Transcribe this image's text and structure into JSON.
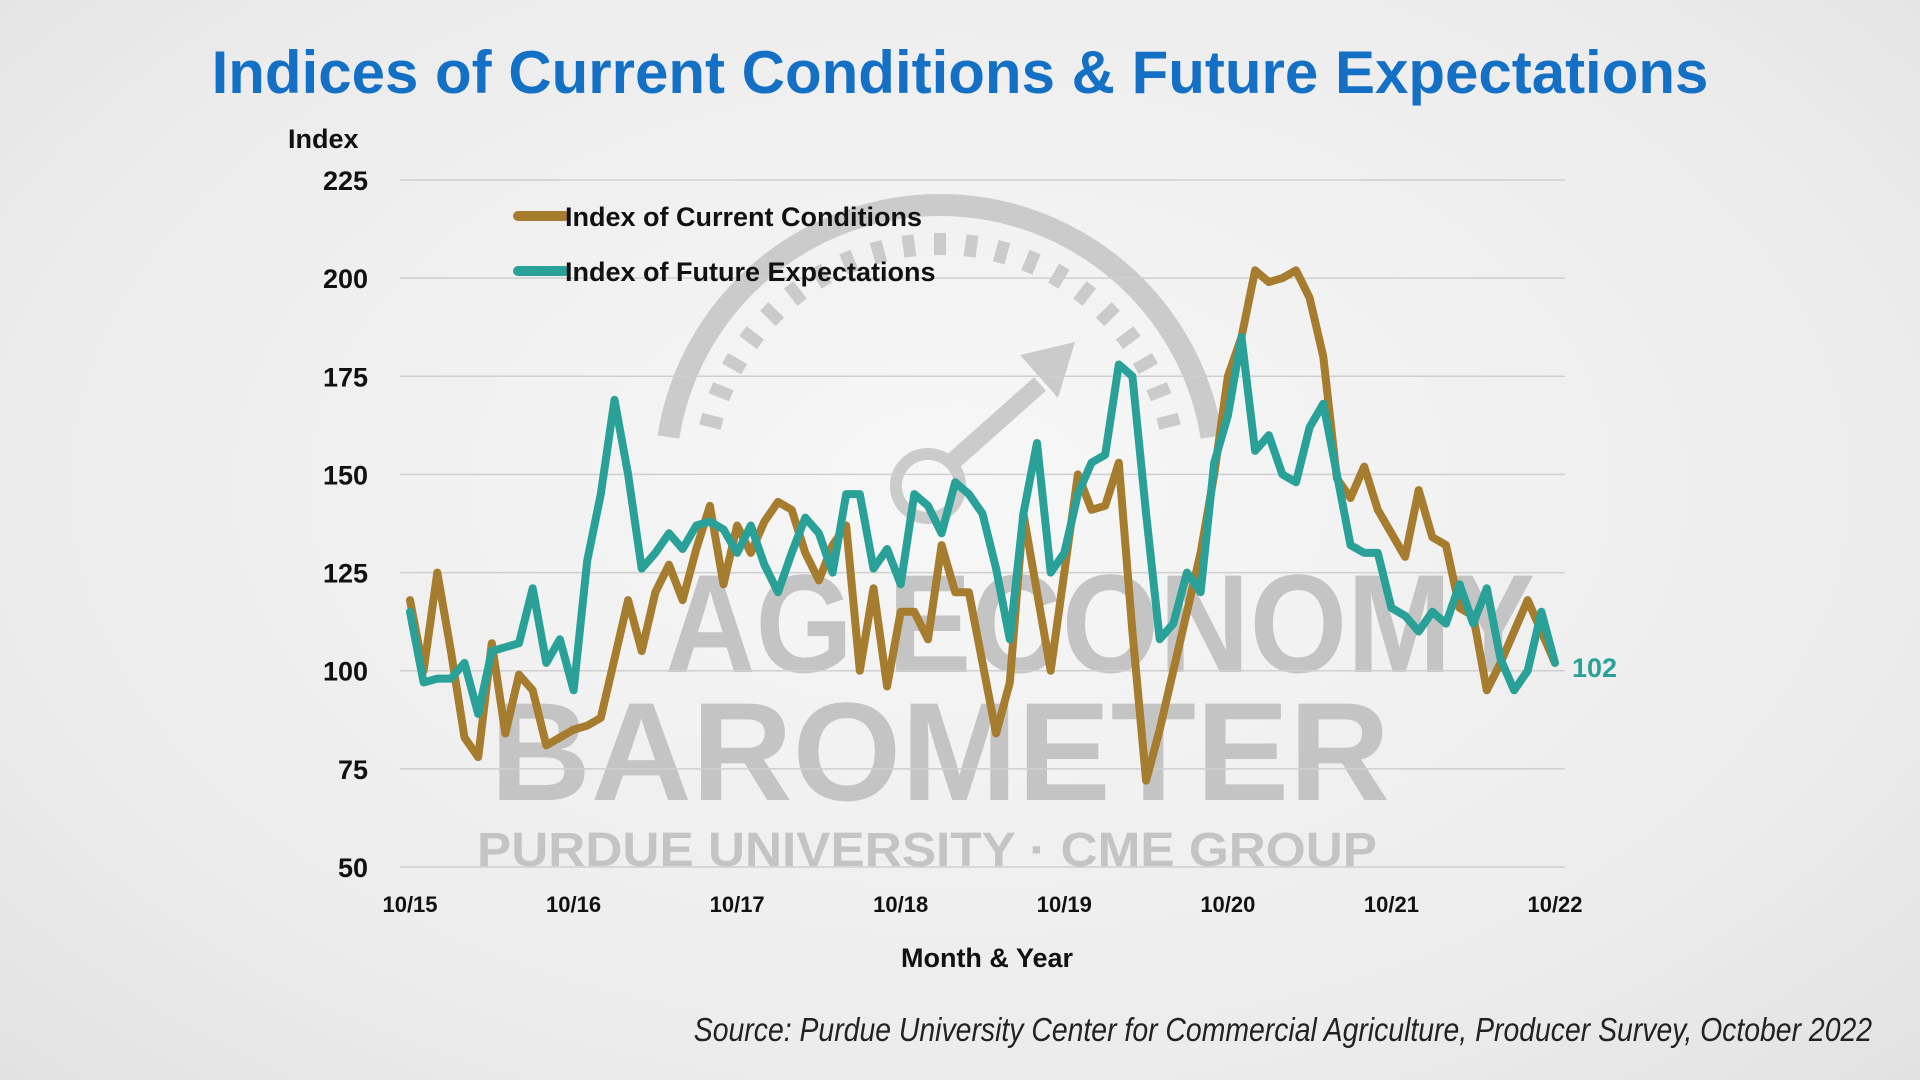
{
  "title": "Indices of Current Conditions & Future Expectations",
  "source": "Source: Purdue University Center for Commercial Agriculture, Producer Survey, October 2022",
  "watermark": {
    "line1": "AG ECONOMY",
    "line2": "BAROMETER",
    "line3": "PURDUE UNIVERSITY · CME GROUP"
  },
  "colors": {
    "current": "#a67c2e",
    "future": "#2aa198",
    "title": "#1470c4",
    "grid": "#cfcfcf"
  },
  "chart_data": {
    "type": "line",
    "ylabel": "Index",
    "xlabel": "Month & Year",
    "ylim": [
      50,
      225
    ],
    "yticks": [
      "225",
      "200",
      "175",
      "150",
      "125",
      "100",
      "75",
      "50"
    ],
    "x_tick_labels": [
      "10/15",
      "10/16",
      "10/17",
      "10/18",
      "10/19",
      "10/20",
      "10/21",
      "10/22"
    ],
    "x_start": "10/15",
    "x_end": "10/22",
    "grid": "horizontal",
    "legend_position": "top-left",
    "end_label": "102",
    "series": [
      {
        "name": "Index of Current Conditions",
        "color": "#a67c2e",
        "values": [
          118,
          100,
          125,
          105,
          83,
          78,
          107,
          84,
          99,
          95,
          81,
          83,
          85,
          86,
          88,
          103,
          118,
          105,
          120,
          127,
          118,
          131,
          142,
          122,
          137,
          130,
          138,
          143,
          141,
          130,
          123,
          132,
          137,
          100,
          121,
          96,
          115,
          115,
          108,
          132,
          120,
          120,
          102,
          84,
          97,
          140,
          120,
          100,
          125,
          150,
          141,
          142,
          153,
          110,
          72,
          85,
          100,
          115,
          130,
          150,
          175,
          185,
          202,
          199,
          200,
          202,
          195,
          180,
          149,
          144,
          152,
          141,
          135,
          129,
          146,
          134,
          132,
          116,
          114,
          95,
          102,
          110,
          118,
          110,
          102
        ],
        "end_value": 102
      },
      {
        "name": "Index of Future Expectations",
        "color": "#2aa198",
        "values": [
          115,
          97,
          98,
          98,
          102,
          89,
          105,
          106,
          107,
          121,
          102,
          108,
          95,
          128,
          145,
          169,
          150,
          126,
          130,
          135,
          131,
          137,
          138,
          136,
          130,
          137,
          127,
          120,
          130,
          139,
          135,
          125,
          145,
          145,
          126,
          131,
          122,
          145,
          142,
          135,
          148,
          145,
          140,
          126,
          108,
          140,
          158,
          125,
          130,
          145,
          153,
          155,
          178,
          175,
          140,
          108,
          112,
          125,
          120,
          153,
          165,
          185,
          156,
          160,
          150,
          148,
          162,
          168,
          150,
          132,
          130,
          130,
          116,
          114,
          110,
          115,
          112,
          122,
          112,
          121,
          103,
          95,
          100,
          115,
          102
        ],
        "end_value": 102
      }
    ]
  }
}
